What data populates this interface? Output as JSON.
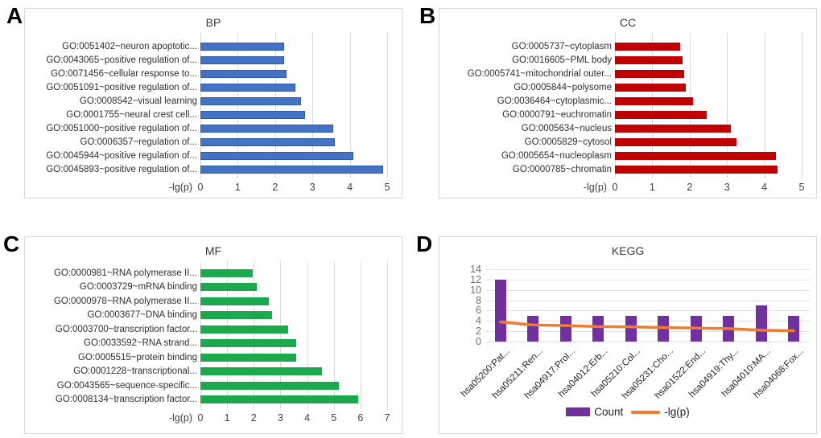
{
  "panel_letters": [
    "A",
    "B",
    "C",
    "D"
  ],
  "chart_data": [
    {
      "panel": "A",
      "type": "bar",
      "orientation": "horizontal",
      "title": "BP",
      "xlabel": "-lg(p)",
      "bar_color": "#4472C4",
      "bar_border": "#2e5aa8",
      "xlim": [
        0,
        5
      ],
      "xticks": [
        0,
        1,
        2,
        3,
        4,
        5
      ],
      "categories": [
        "GO:0051402~neuron apoptotic...",
        "GO:0043065~positive regulation of...",
        "GO:0071456~cellular response to...",
        "GO:0051091~positive regulation of...",
        "GO:0008542~visual learning",
        "GO:0001755~neural crest cell...",
        "GO:0051000~positive regulation of...",
        "GO:0006357~regulation of...",
        "GO:0045944~positive regulation of...",
        "GO:0045893~positive regulation of..."
      ],
      "values": [
        2.25,
        2.25,
        2.3,
        2.55,
        2.7,
        2.8,
        3.55,
        3.6,
        4.1,
        4.9
      ]
    },
    {
      "panel": "B",
      "type": "bar",
      "orientation": "horizontal",
      "title": "CC",
      "xlabel": "-lg(p)",
      "bar_color": "#C00000",
      "bar_border": "#C00000",
      "xlim": [
        0,
        5
      ],
      "xticks": [
        0,
        1,
        2,
        3,
        4,
        5
      ],
      "categories": [
        "GO:0005737~cytoplasm",
        "GO:0016605~PML body",
        "GO:0005741~mitochondrial outer...",
        "GO:0005844~polysome",
        "GO:0036464~cytoplasmic...",
        "GO:0000791~euchromatin",
        "GO:0005634~nucleus",
        "GO:0005829~cytosol",
        "GO:0005654~nucleoplasm",
        "GO:0000785~chromatin"
      ],
      "values": [
        1.75,
        1.8,
        1.85,
        1.9,
        2.1,
        2.45,
        3.1,
        3.25,
        4.3,
        4.35
      ]
    },
    {
      "panel": "C",
      "type": "bar",
      "orientation": "horizontal",
      "title": "MF",
      "xlabel": "-lg(p)",
      "bar_color": "#1CA84D",
      "bar_border": "#1CA84D",
      "xlim": [
        0,
        7
      ],
      "xticks": [
        0,
        1,
        2,
        3,
        4,
        5,
        6,
        7
      ],
      "categories": [
        "GO:0000981~RNA polymerase II...",
        "GO:0003729~mRNA binding",
        "GO:0000978~RNA polymerase II...",
        "GO:0003677~DNA binding",
        "GO:0003700~transcription factor...",
        "GO:0033592~RNA strand...",
        "GO:0005515~protein binding",
        "GO:0001228~transcriptional...",
        "GO:0043565~sequence-specific...",
        "GO:0008134~transcription factor..."
      ],
      "values": [
        1.95,
        2.1,
        2.55,
        2.7,
        3.3,
        3.6,
        3.6,
        4.55,
        5.2,
        5.9
      ]
    },
    {
      "panel": "D",
      "type": "bar+line",
      "orientation": "vertical",
      "title": "KEGG",
      "ylim": [
        0,
        14
      ],
      "yticks": [
        0,
        2,
        4,
        6,
        8,
        10,
        12,
        14
      ],
      "categories": [
        "hsa05200:Pat...",
        "hsa05211:Ren...",
        "hsa04917:Prol...",
        "hsa04012:Erb...",
        "hsa05210:Col...",
        "hsa05231:Cho...",
        "hsa01522:End...",
        "hsa04919:Thy...",
        "hsa04010:MA...",
        "hsa04068:Fox..."
      ],
      "series": [
        {
          "name": "Count",
          "type": "bar",
          "color": "#7030A0",
          "values": [
            12,
            5,
            5,
            5,
            5,
            5,
            5,
            5,
            7,
            5
          ]
        },
        {
          "name": "-lg(p)",
          "type": "line",
          "color": "#ED7D31",
          "values": [
            3.8,
            3.2,
            3.1,
            2.9,
            2.85,
            2.7,
            2.6,
            2.5,
            2.2,
            2.1
          ]
        }
      ],
      "legend": [
        "Count",
        "-lg(p)"
      ],
      "legend_position": "bottom",
      "grid": true
    }
  ]
}
